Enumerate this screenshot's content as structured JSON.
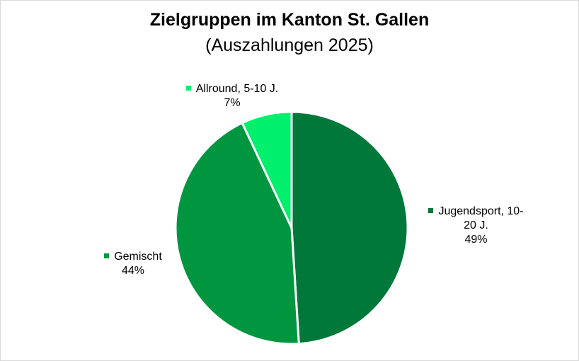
{
  "chart_data": {
    "type": "pie",
    "title": "Zielgruppen im Kanton St. Gallen",
    "subtitle": "(Auszahlungen 2025)",
    "slices": [
      {
        "name": "Jugendsport, 10-20 J.",
        "label_line1": "Jugendsport, 10-",
        "label_line2": "20 J.",
        "percent_label": "49%",
        "value": 49,
        "color": "#00783A"
      },
      {
        "name": "Gemischt",
        "label_line1": "Gemischt",
        "percent_label": "44%",
        "value": 44,
        "color": "#00963F"
      },
      {
        "name": "Allround, 5-10 J.",
        "label_line1": "Allround, 5-10 J.",
        "percent_label": "7%",
        "value": 7,
        "color": "#00F06E"
      }
    ],
    "legend": "none",
    "start_angle": "12 o'clock, clockwise"
  }
}
